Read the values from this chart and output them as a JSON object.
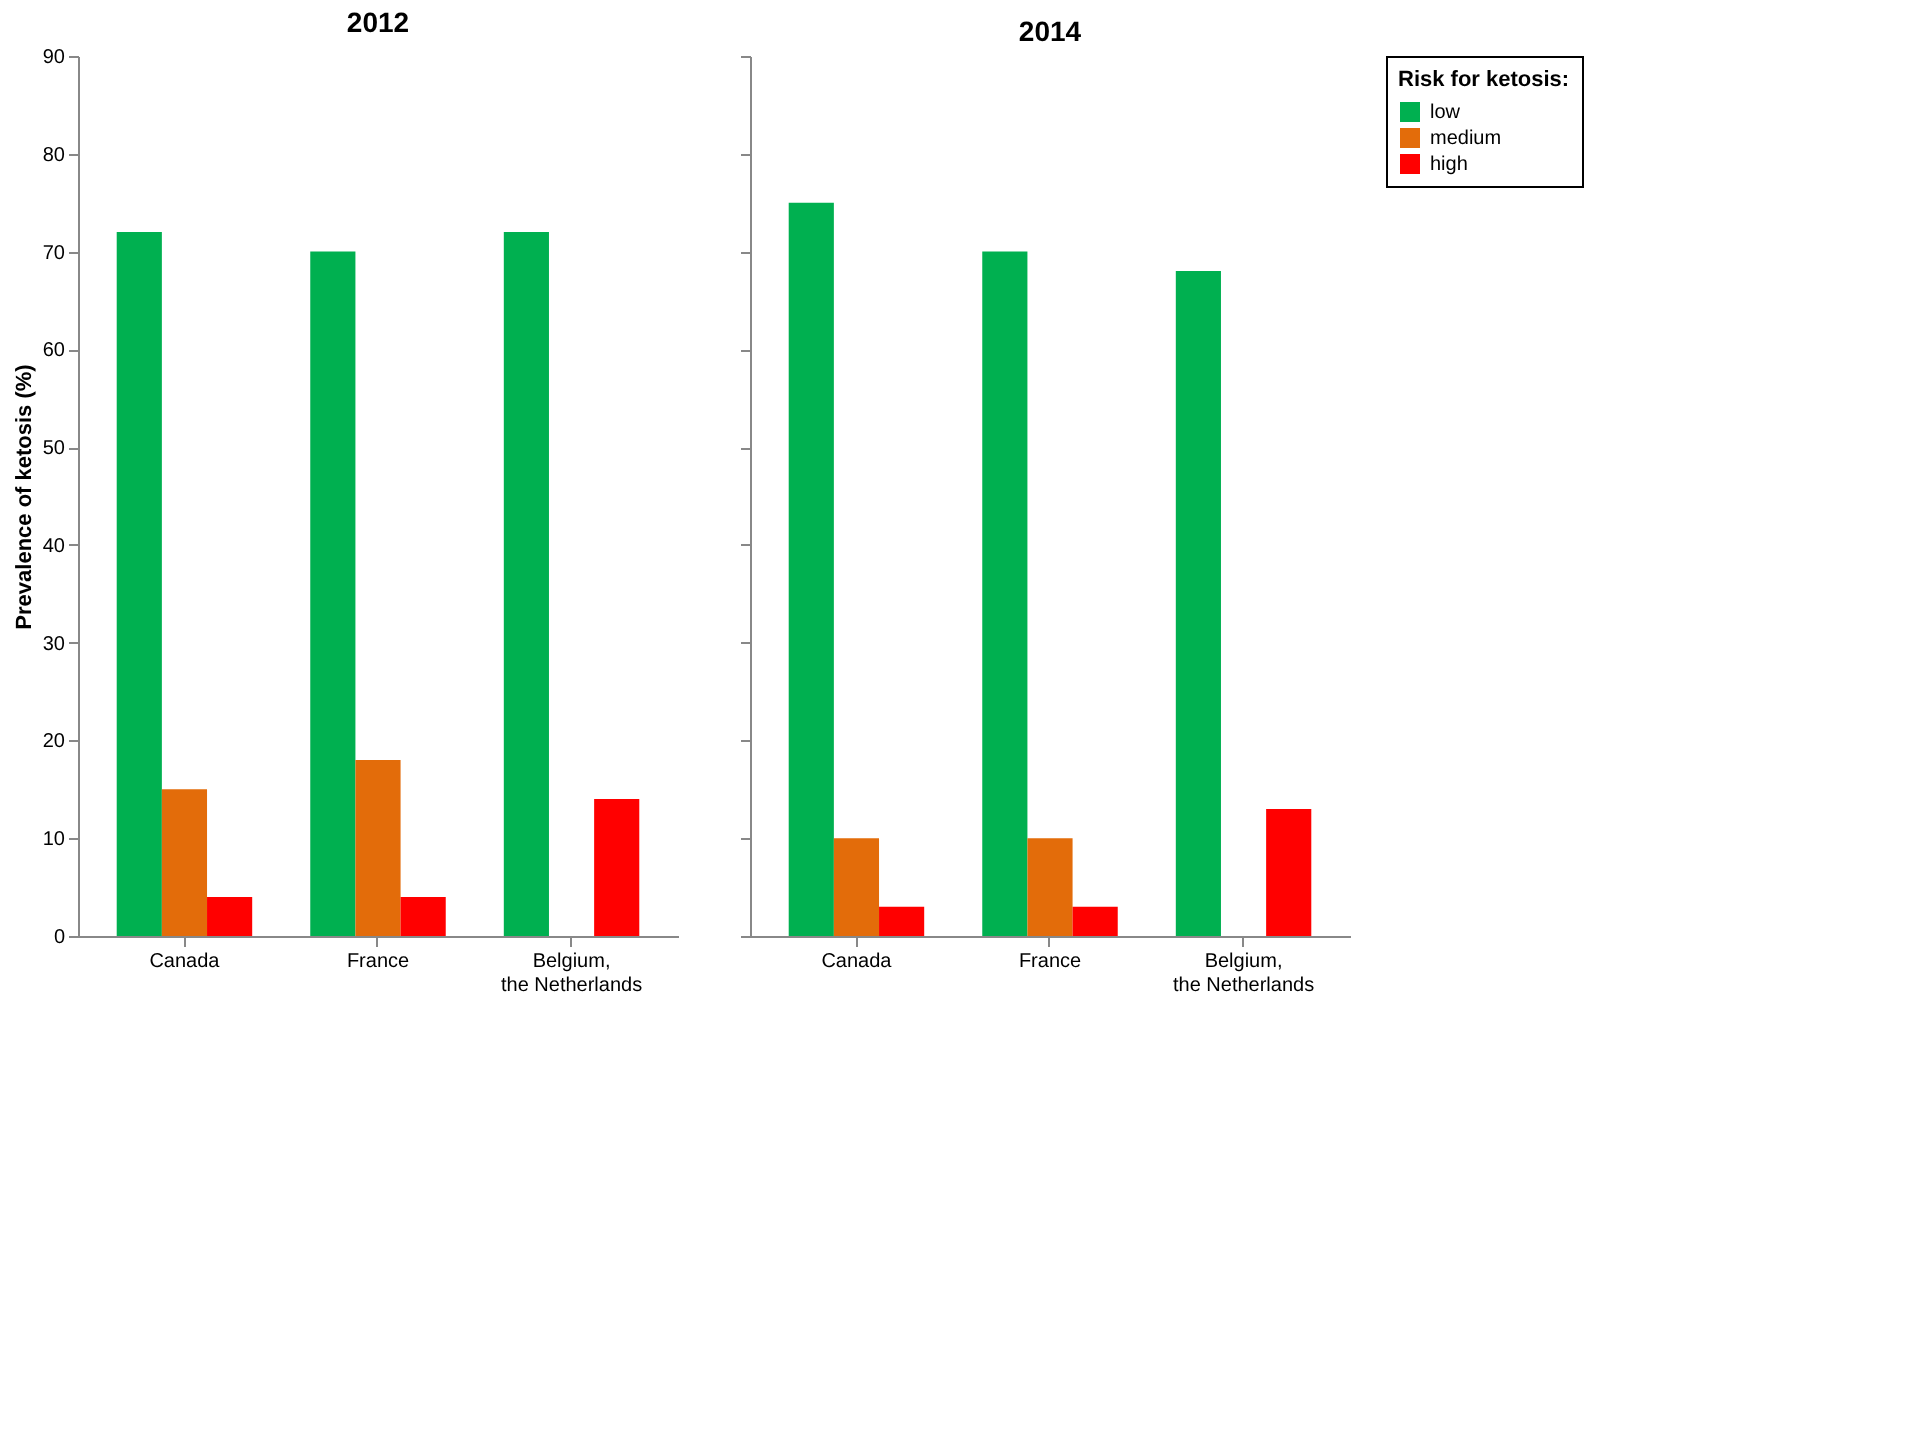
{
  "chart_data": [
    {
      "type": "bar",
      "title": "2012",
      "ylabel": "Prevalence of ketosis (%)",
      "categories": [
        "Canada",
        "France",
        "Belgium,\nthe Netherlands"
      ],
      "ylim": [
        0,
        90
      ],
      "yticks": [
        0,
        10,
        20,
        30,
        40,
        50,
        60,
        70,
        80,
        90
      ],
      "grid": false,
      "legend": false,
      "series": [
        {
          "color": "#00b050",
          "values": [
            72,
            70,
            72
          ]
        },
        {
          "color": "#e36c0a",
          "values": [
            15,
            18,
            null
          ]
        },
        {
          "color": "#ff0000",
          "values": [
            4,
            4,
            14
          ]
        }
      ]
    },
    {
      "type": "bar",
      "title": "2014",
      "legend_title": "Risk for ketosis:",
      "categories": [
        "Canada",
        "France",
        "Belgium,\nthe Netherlands"
      ],
      "ylim": [
        0,
        90
      ],
      "yticks": [
        0,
        10,
        20,
        30,
        40,
        50,
        60,
        70,
        80,
        90
      ],
      "tick_labels": "x",
      "grid": false,
      "legend": "right",
      "series": [
        {
          "name": "low",
          "color": "#00b050",
          "values": [
            75,
            70,
            68
          ]
        },
        {
          "name": "medium",
          "color": "#e36c0a",
          "values": [
            10,
            10,
            null
          ]
        },
        {
          "name": "high",
          "color": "#ff0000",
          "values": [
            3,
            3,
            13
          ]
        }
      ]
    }
  ]
}
